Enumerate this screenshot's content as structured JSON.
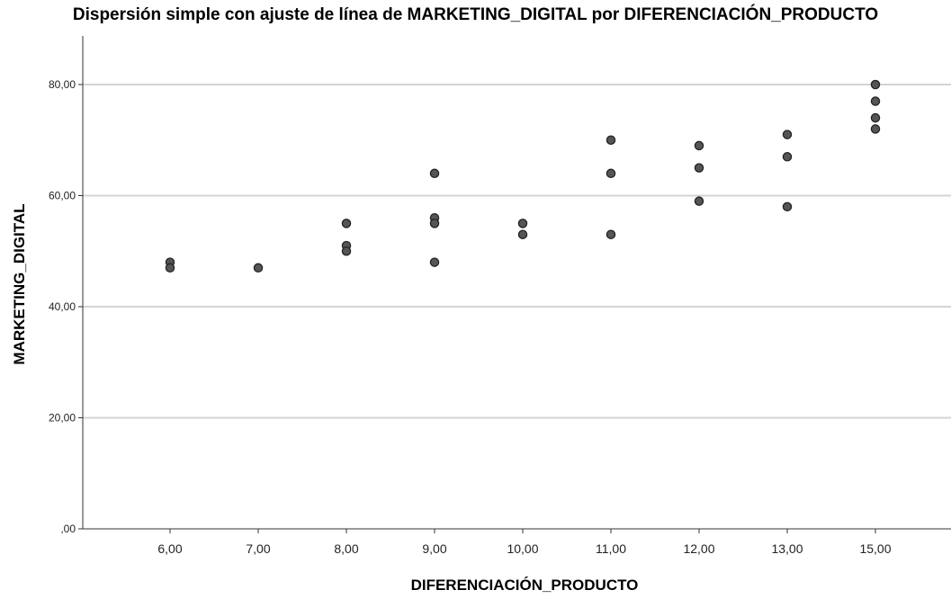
{
  "chart_data": {
    "type": "scatter",
    "title": "Dispersión simple con ajuste de línea de MARKETING_DIGITAL por DIFERENCIACIÓN_PRODUCTO",
    "xlabel": "DIFERENCIACIÓN_PRODUCTO",
    "ylabel": "MARKETING_DIGITAL",
    "x_categories": [
      "6,00",
      "7,00",
      "8,00",
      "9,00",
      "10,00",
      "11,00",
      "12,00",
      "13,00",
      "15,00"
    ],
    "y_ticks": [
      ",00",
      "20,00",
      "40,00",
      "60,00",
      "80,00"
    ],
    "ylim": [
      0,
      85
    ],
    "grid": "horizontal",
    "point_color": "#555555",
    "points": [
      {
        "x": "6,00",
        "y": 48
      },
      {
        "x": "6,00",
        "y": 47
      },
      {
        "x": "7,00",
        "y": 47
      },
      {
        "x": "8,00",
        "y": 55
      },
      {
        "x": "8,00",
        "y": 51
      },
      {
        "x": "8,00",
        "y": 50
      },
      {
        "x": "9,00",
        "y": 64
      },
      {
        "x": "9,00",
        "y": 56
      },
      {
        "x": "9,00",
        "y": 55
      },
      {
        "x": "9,00",
        "y": 48
      },
      {
        "x": "10,00",
        "y": 55
      },
      {
        "x": "10,00",
        "y": 53
      },
      {
        "x": "11,00",
        "y": 70
      },
      {
        "x": "11,00",
        "y": 64
      },
      {
        "x": "11,00",
        "y": 53
      },
      {
        "x": "12,00",
        "y": 69
      },
      {
        "x": "12,00",
        "y": 65
      },
      {
        "x": "12,00",
        "y": 59
      },
      {
        "x": "13,00",
        "y": 71
      },
      {
        "x": "13,00",
        "y": 67
      },
      {
        "x": "13,00",
        "y": 58
      },
      {
        "x": "15,00",
        "y": 80
      },
      {
        "x": "15,00",
        "y": 77
      },
      {
        "x": "15,00",
        "y": 74
      },
      {
        "x": "15,00",
        "y": 72
      }
    ]
  }
}
